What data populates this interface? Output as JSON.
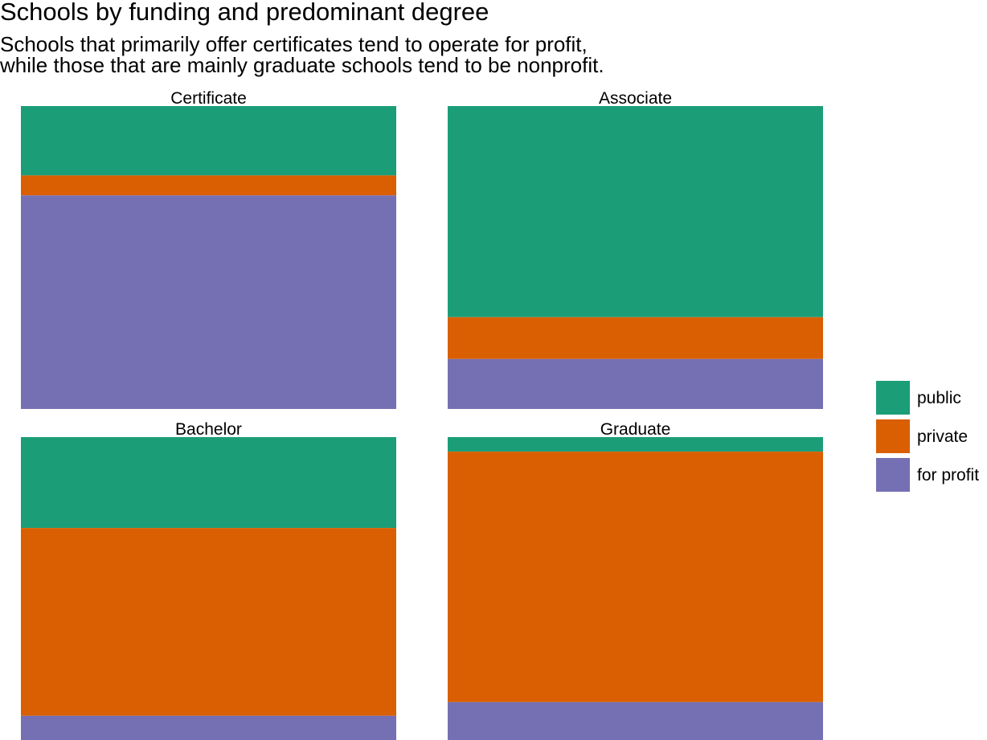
{
  "title": "Schools by funding and predominant degree",
  "subtitle": [
    "Schools that primarily offer certificates tend to operate for profit,",
    "while those that are mainly graduate schools tend to be nonprofit."
  ],
  "chart_data": {
    "type": "bar",
    "subtype": "stacked-100-percent-faceted",
    "title": "Schools by funding and predominant degree",
    "subtitle": "Schools that primarily offer certificates tend to operate for profit, while those that are mainly graduate schools tend to be nonprofit.",
    "xlabel": "",
    "ylabel": "",
    "ylim": [
      0,
      100
    ],
    "grid": false,
    "legend_position": "right",
    "facets": [
      "Certificate",
      "Associate",
      "Bachelor",
      "Graduate"
    ],
    "series": [
      {
        "name": "public",
        "color": "#1b9e77",
        "values": [
          22.9,
          69.7,
          30.0,
          4.8
        ]
      },
      {
        "name": "private",
        "color": "#d95f02",
        "values": [
          6.6,
          13.8,
          62.0,
          82.7
        ]
      },
      {
        "name": "for profit",
        "color": "#7570b3",
        "values": [
          70.5,
          16.5,
          8.0,
          12.5
        ]
      }
    ]
  }
}
